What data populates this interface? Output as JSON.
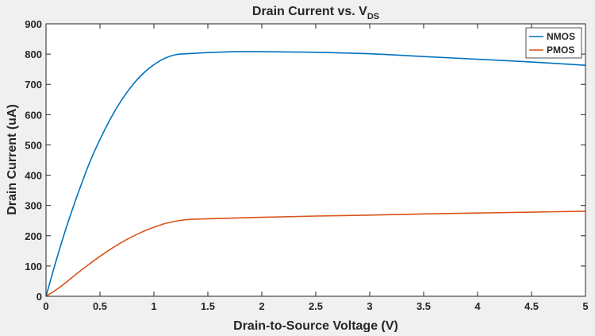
{
  "chart_data": {
    "type": "line",
    "title": "Drain Current vs. V",
    "title_subscript": "DS",
    "xlabel": "Drain-to-Source Voltage (V)",
    "ylabel": "Drain Current (uA)",
    "xlim": [
      0,
      5
    ],
    "ylim": [
      0,
      900
    ],
    "xticks": [
      0,
      0.5,
      1,
      1.5,
      2,
      2.5,
      3,
      3.5,
      4,
      4.5,
      5
    ],
    "xtick_labels": [
      "0",
      "0.5",
      "1",
      "1.5",
      "2",
      "2.5",
      "3",
      "3.5",
      "4",
      "4.5",
      "5"
    ],
    "yticks": [
      0,
      100,
      200,
      300,
      400,
      500,
      600,
      700,
      800,
      900
    ],
    "ytick_labels": [
      "0",
      "100",
      "200",
      "300",
      "400",
      "500",
      "600",
      "700",
      "800",
      "900"
    ],
    "grid": false,
    "legend_position": "top-right",
    "series": [
      {
        "name": "NMOS",
        "color": "#0072bd",
        "x": [
          0,
          0.1,
          0.2,
          0.3,
          0.4,
          0.5,
          0.6,
          0.7,
          0.8,
          0.9,
          1.0,
          1.1,
          1.2,
          1.3,
          1.4,
          1.5,
          1.75,
          2.0,
          2.25,
          2.5,
          3.0,
          3.5,
          4.0,
          4.5,
          5.0
        ],
        "y": [
          0,
          125,
          240,
          343,
          438,
          518,
          588,
          648,
          697,
          736,
          765,
          786,
          798,
          801,
          803,
          805,
          808,
          808,
          807,
          806,
          801,
          792,
          783,
          774,
          763
        ]
      },
      {
        "name": "PMOS",
        "color": "#d95319",
        "x": [
          0,
          0.1,
          0.2,
          0.3,
          0.4,
          0.5,
          0.6,
          0.7,
          0.8,
          0.9,
          1.0,
          1.1,
          1.2,
          1.3,
          1.4,
          1.5,
          2.0,
          2.5,
          3.0,
          3.5,
          4.0,
          4.5,
          5.0
        ],
        "y": [
          0,
          23,
          50,
          79,
          106,
          132,
          156,
          178,
          197,
          214,
          228,
          240,
          248,
          253,
          255,
          256,
          261,
          265,
          268,
          272,
          275,
          278,
          281
        ]
      }
    ]
  }
}
